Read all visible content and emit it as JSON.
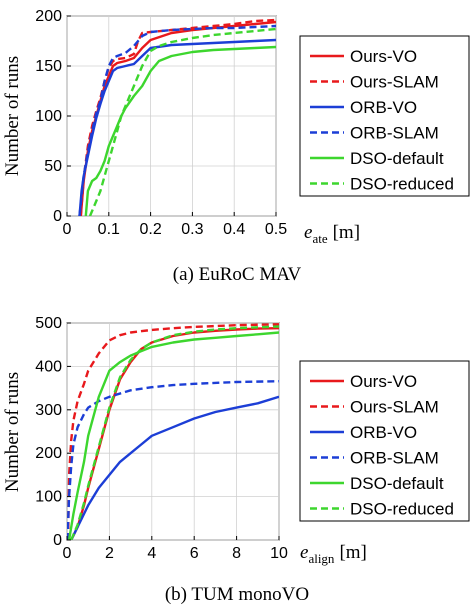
{
  "chart_data": [
    {
      "type": "line",
      "caption": "(a) EuRoC MAV",
      "ylabel": "Number of runs",
      "xlabel_main": "e",
      "xlabel_sub": "ate",
      "xlabel_unit": "[m]",
      "xlim": [
        0,
        0.5
      ],
      "ylim": [
        0,
        200
      ],
      "xticks": [
        0,
        0.1,
        0.2,
        0.3,
        0.4,
        0.5
      ],
      "xtick_labels": [
        "0",
        "0.1",
        "0.2",
        "0.3",
        "0.4",
        "0.5"
      ],
      "yticks": [
        0,
        50,
        100,
        150,
        200
      ],
      "ytick_labels": [
        "0",
        "50",
        "100",
        "150",
        "200"
      ],
      "legend_position": "right",
      "series": [
        {
          "name": "Ours-VO",
          "color": "#e8191c",
          "dash": "solid",
          "x": [
            0.033,
            0.04,
            0.05,
            0.06,
            0.07,
            0.08,
            0.09,
            0.1,
            0.11,
            0.12,
            0.14,
            0.16,
            0.18,
            0.2,
            0.25,
            0.3,
            0.35,
            0.4,
            0.45,
            0.5
          ],
          "y": [
            0,
            35,
            65,
            85,
            100,
            115,
            130,
            140,
            150,
            153,
            155,
            158,
            168,
            176,
            183,
            186,
            188,
            190,
            192,
            194
          ]
        },
        {
          "name": "Ours-SLAM",
          "color": "#e8191c",
          "dash": "dashed",
          "x": [
            0.033,
            0.04,
            0.05,
            0.06,
            0.07,
            0.08,
            0.09,
            0.1,
            0.11,
            0.12,
            0.14,
            0.16,
            0.17,
            0.18,
            0.2,
            0.25,
            0.3,
            0.35,
            0.4,
            0.45,
            0.5
          ],
          "y": [
            0,
            38,
            70,
            90,
            105,
            118,
            135,
            148,
            155,
            157,
            158,
            162,
            175,
            183,
            184,
            186,
            188,
            190,
            192,
            195,
            196
          ]
        },
        {
          "name": "ORB-VO",
          "color": "#1c3ed6",
          "dash": "solid",
          "x": [
            0.03,
            0.035,
            0.04,
            0.05,
            0.06,
            0.07,
            0.08,
            0.09,
            0.1,
            0.11,
            0.12,
            0.14,
            0.16,
            0.18,
            0.2,
            0.25,
            0.3,
            0.35,
            0.4,
            0.45,
            0.5
          ],
          "y": [
            0,
            25,
            40,
            60,
            80,
            98,
            112,
            125,
            135,
            145,
            148,
            150,
            152,
            160,
            168,
            171,
            172,
            173,
            174,
            175,
            176
          ]
        },
        {
          "name": "ORB-SLAM",
          "color": "#1c3ed6",
          "dash": "dashed",
          "x": [
            0.03,
            0.04,
            0.05,
            0.06,
            0.07,
            0.08,
            0.09,
            0.1,
            0.11,
            0.12,
            0.14,
            0.16,
            0.18,
            0.2,
            0.25,
            0.3,
            0.35,
            0.4,
            0.45,
            0.5
          ],
          "y": [
            0,
            40,
            65,
            85,
            103,
            115,
            135,
            150,
            158,
            160,
            163,
            170,
            180,
            184,
            186,
            187,
            188,
            188,
            189,
            190
          ]
        },
        {
          "name": "DSO-default",
          "color": "#3dd62e",
          "dash": "solid",
          "x": [
            0.045,
            0.05,
            0.06,
            0.07,
            0.08,
            0.09,
            0.1,
            0.11,
            0.12,
            0.13,
            0.14,
            0.16,
            0.18,
            0.2,
            0.22,
            0.25,
            0.3,
            0.35,
            0.4,
            0.45,
            0.5
          ],
          "y": [
            0,
            25,
            35,
            38,
            45,
            55,
            70,
            80,
            90,
            100,
            108,
            120,
            130,
            145,
            155,
            160,
            164,
            166,
            167,
            168,
            169
          ]
        },
        {
          "name": "DSO-reduced",
          "color": "#3dd62e",
          "dash": "dashed",
          "x": [
            0.055,
            0.06,
            0.07,
            0.08,
            0.09,
            0.1,
            0.11,
            0.12,
            0.13,
            0.14,
            0.15,
            0.16,
            0.18,
            0.2,
            0.22,
            0.25,
            0.3,
            0.35,
            0.4,
            0.45,
            0.5
          ],
          "y": [
            0,
            5,
            15,
            25,
            40,
            55,
            70,
            85,
            100,
            110,
            120,
            130,
            150,
            165,
            170,
            174,
            178,
            181,
            183,
            185,
            187
          ]
        }
      ]
    },
    {
      "type": "line",
      "caption": "(b) TUM monoVO",
      "ylabel": "Number of runs",
      "xlabel_main": "e",
      "xlabel_sub": "align",
      "xlabel_unit": "[m]",
      "xlim": [
        0,
        10
      ],
      "ylim": [
        0,
        500
      ],
      "xticks": [
        0,
        2,
        4,
        6,
        8,
        10
      ],
      "xtick_labels": [
        "0",
        "2",
        "4",
        "6",
        "8",
        "10"
      ],
      "yticks": [
        0,
        100,
        200,
        300,
        400,
        500
      ],
      "ytick_labels": [
        "0",
        "100",
        "200",
        "300",
        "400",
        "500"
      ],
      "legend_position": "right",
      "series": [
        {
          "name": "Ours-VO",
          "color": "#e8191c",
          "dash": "solid",
          "x": [
            0.2,
            0.5,
            0.8,
            1.0,
            1.5,
            2.0,
            2.5,
            3.0,
            3.5,
            4.0,
            5.0,
            6.0,
            7.0,
            8.0,
            9.0,
            10.0
          ],
          "y": [
            0,
            30,
            80,
            120,
            210,
            300,
            370,
            410,
            440,
            455,
            470,
            478,
            482,
            485,
            487,
            488
          ]
        },
        {
          "name": "Ours-SLAM",
          "color": "#e8191c",
          "dash": "dashed",
          "x": [
            0.05,
            0.1,
            0.2,
            0.3,
            0.5,
            0.8,
            1.0,
            1.5,
            2.0,
            2.5,
            3.0,
            4.0,
            5.0,
            6.0,
            8.0,
            10.0
          ],
          "y": [
            0,
            150,
            230,
            275,
            320,
            360,
            390,
            430,
            460,
            472,
            478,
            484,
            488,
            491,
            495,
            497
          ]
        },
        {
          "name": "ORB-VO",
          "color": "#1c3ed6",
          "dash": "solid",
          "x": [
            0.2,
            0.5,
            1.0,
            1.5,
            2.0,
            2.5,
            3.0,
            3.5,
            4.0,
            5.0,
            6.0,
            7.0,
            8.0,
            9.0,
            10.0
          ],
          "y": [
            0,
            30,
            80,
            120,
            150,
            180,
            200,
            220,
            240,
            260,
            280,
            295,
            305,
            315,
            330
          ]
        },
        {
          "name": "ORB-SLAM",
          "color": "#1c3ed6",
          "dash": "dashed",
          "x": [
            0.02,
            0.1,
            0.2,
            0.3,
            0.5,
            0.8,
            1.0,
            1.5,
            2.0,
            3.0,
            4.0,
            5.0,
            6.0,
            8.0,
            10.0
          ],
          "y": [
            0,
            100,
            170,
            220,
            260,
            290,
            305,
            320,
            330,
            345,
            352,
            357,
            360,
            364,
            366
          ]
        },
        {
          "name": "DSO-default",
          "color": "#3dd62e",
          "dash": "solid",
          "x": [
            0.1,
            0.3,
            0.5,
            0.8,
            1.0,
            1.5,
            2.0,
            2.5,
            3.0,
            3.5,
            4.0,
            5.0,
            6.0,
            7.0,
            8.0,
            9.0,
            10.0
          ],
          "y": [
            0,
            60,
            110,
            180,
            240,
            330,
            390,
            410,
            425,
            435,
            445,
            455,
            462,
            466,
            470,
            474,
            478
          ]
        },
        {
          "name": "DSO-reduced",
          "color": "#3dd62e",
          "dash": "dashed",
          "x": [
            0.2,
            0.5,
            0.8,
            1.0,
            1.5,
            2.0,
            2.5,
            3.0,
            3.5,
            4.0,
            5.0,
            6.0,
            7.0,
            8.0,
            9.0,
            10.0
          ],
          "y": [
            0,
            35,
            85,
            125,
            215,
            305,
            375,
            415,
            440,
            455,
            472,
            480,
            485,
            488,
            490,
            492
          ]
        }
      ]
    }
  ]
}
